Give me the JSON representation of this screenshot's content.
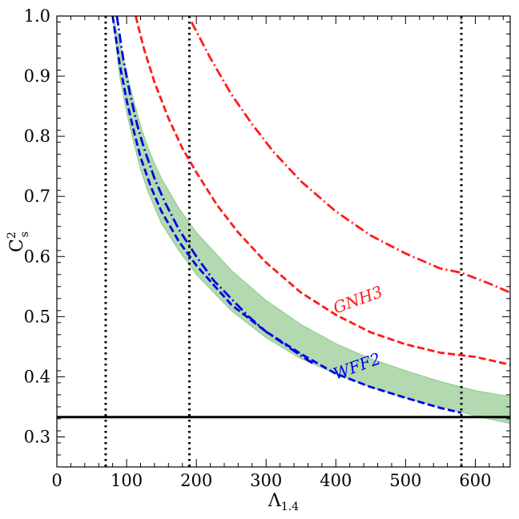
{
  "chart_data": {
    "type": "line",
    "title": "",
    "xlabel": "Λ",
    "xlabel_sub": "1.4",
    "ylabel": "C",
    "ylabel_sup": "2",
    "ylabel_sub": "s",
    "xlim": [
      0,
      650
    ],
    "ylim": [
      0.25,
      1.0
    ],
    "x_ticks": [
      0,
      100,
      200,
      300,
      400,
      500,
      600
    ],
    "y_ticks": [
      0.3,
      0.4,
      0.5,
      0.6,
      0.7,
      0.8,
      0.9,
      1.0
    ],
    "x_tick_labels": [
      "0",
      "100",
      "200",
      "300",
      "400",
      "500",
      "600"
    ],
    "y_tick_labels": [
      "0.3",
      "0.4",
      "0.5",
      "0.6",
      "0.7",
      "0.8",
      "0.9",
      "1.0"
    ],
    "grid": false,
    "colors": {
      "band_fill": "#b2d9b0",
      "band_edge": "#8cc98a",
      "blue": "#0000e6",
      "red": "#ff1a1a",
      "black": "#000000"
    },
    "band": {
      "x": [
        80,
        90,
        100,
        110,
        120,
        130,
        140,
        150,
        175,
        200,
        250,
        300,
        350,
        400,
        450,
        500,
        550,
        600,
        650
      ],
      "upper": [
        1.0,
        0.955,
        0.905,
        0.86,
        0.818,
        0.783,
        0.755,
        0.73,
        0.68,
        0.64,
        0.577,
        0.527,
        0.487,
        0.455,
        0.43,
        0.41,
        0.392,
        0.377,
        0.367
      ],
      "lower": [
        1.0,
        0.9,
        0.84,
        0.79,
        0.745,
        0.71,
        0.682,
        0.655,
        0.61,
        0.57,
        0.51,
        0.465,
        0.43,
        0.405,
        0.383,
        0.365,
        0.35,
        0.335,
        0.322
      ]
    },
    "series": [
      {
        "style": "dash-dot",
        "color": "#0000e6",
        "x": [
          86,
          95,
          105,
          115,
          125,
          140,
          155,
          175,
          200,
          225,
          250,
          275,
          300,
          325,
          350,
          370
        ],
        "y": [
          1.0,
          0.93,
          0.87,
          0.82,
          0.78,
          0.73,
          0.69,
          0.645,
          0.6,
          0.56,
          0.53,
          0.5,
          0.475,
          0.455,
          0.435,
          0.42
        ]
      },
      {
        "style": "dashed",
        "color": "#0000e6",
        "x": [
          80,
          90,
          100,
          110,
          120,
          135,
          150,
          175,
          200,
          250,
          300,
          350,
          400,
          450,
          500,
          550,
          580
        ],
        "y": [
          1.0,
          0.92,
          0.86,
          0.81,
          0.765,
          0.715,
          0.675,
          0.625,
          0.585,
          0.52,
          0.475,
          0.438,
          0.405,
          0.383,
          0.365,
          0.348,
          0.34
        ]
      },
      {
        "style": "dashed",
        "color": "#ff1a1a",
        "x": [
          113,
          125,
          140,
          160,
          180,
          200,
          230,
          260,
          300,
          350,
          400,
          450,
          500,
          550,
          600,
          650
        ],
        "y": [
          1.0,
          0.945,
          0.89,
          0.83,
          0.78,
          0.74,
          0.685,
          0.64,
          0.59,
          0.54,
          0.503,
          0.474,
          0.454,
          0.44,
          0.433,
          0.42
        ]
      },
      {
        "style": "dash-dot",
        "color": "#ff1a1a",
        "x": [
          193,
          220,
          250,
          280,
          310,
          350,
          400,
          450,
          500,
          550,
          580,
          620,
          650
        ],
        "y": [
          0.99,
          0.93,
          0.87,
          0.82,
          0.775,
          0.725,
          0.675,
          0.635,
          0.605,
          0.58,
          0.573,
          0.555,
          0.54
        ]
      }
    ],
    "hlines": [
      {
        "y": 0.333,
        "color": "#000000",
        "style": "solid"
      }
    ],
    "vlines": [
      {
        "x": 70,
        "color": "#000000",
        "style": "dotted"
      },
      {
        "x": 190,
        "color": "#000000",
        "style": "dotted"
      },
      {
        "x": 580,
        "color": "#000000",
        "style": "dotted"
      }
    ],
    "annotations": [
      {
        "text": "GNH3",
        "x": 400,
        "y": 0.505,
        "color": "#ff1a1a",
        "rotation": -20
      },
      {
        "text": "WFF2",
        "x": 400,
        "y": 0.395,
        "color": "#0000e6",
        "rotation": -20
      }
    ]
  }
}
